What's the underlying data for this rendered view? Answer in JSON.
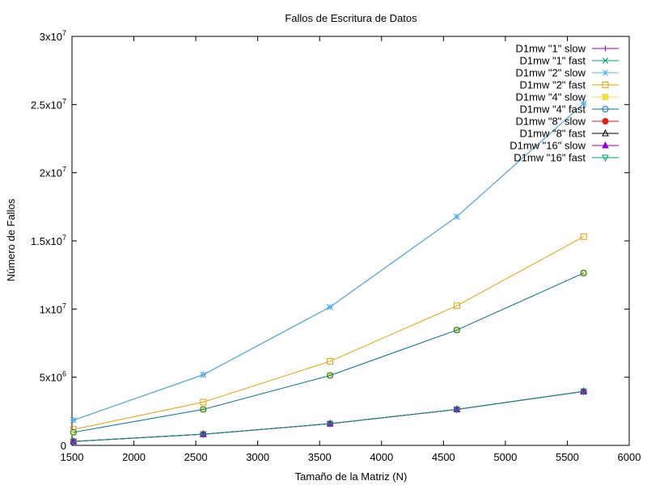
{
  "chart_data": {
    "type": "line",
    "title": "Fallos de Escritura de Datos",
    "xlabel": "Tamaño de la Matriz (N)",
    "ylabel": "Número de Fallos",
    "xlim": [
      1500,
      6000
    ],
    "ylim": [
      0,
      30000000
    ],
    "x_ticks": [
      {
        "value": 1500,
        "label": "1500"
      },
      {
        "value": 2000,
        "label": "2000"
      },
      {
        "value": 2500,
        "label": "2500"
      },
      {
        "value": 3000,
        "label": "3000"
      },
      {
        "value": 3500,
        "label": "3500"
      },
      {
        "value": 4000,
        "label": "4000"
      },
      {
        "value": 4500,
        "label": "4500"
      },
      {
        "value": 5000,
        "label": "5000"
      },
      {
        "value": 5500,
        "label": "5500"
      },
      {
        "value": 6000,
        "label": "6000"
      }
    ],
    "y_ticks": [
      {
        "value": 0,
        "label": "0",
        "exp": ""
      },
      {
        "value": 5000000,
        "label": "5x10",
        "exp": "6"
      },
      {
        "value": 10000000,
        "label": "1x10",
        "exp": "7"
      },
      {
        "value": 15000000,
        "label": "1.5x10",
        "exp": "7"
      },
      {
        "value": 20000000,
        "label": "2x10",
        "exp": "7"
      },
      {
        "value": 25000000,
        "label": "2.5x10",
        "exp": "7"
      },
      {
        "value": 30000000,
        "label": "3x10",
        "exp": "7"
      }
    ],
    "grid": false,
    "legend_position": "top-right",
    "x": [
      1512,
      2560,
      3584,
      4608,
      5632
    ],
    "series": [
      {
        "name": "D1mw \"1\" slow",
        "color": "#9400d3",
        "marker": "plus",
        "values": [
          1850000,
          5180000,
          10150000,
          16780000,
          25070000
        ]
      },
      {
        "name": "D1mw \"1\" fast",
        "color": "#009e73",
        "marker": "cross",
        "values": [
          1850000,
          5180000,
          10150000,
          16780000,
          25070000
        ]
      },
      {
        "name": "D1mw \"2\" slow",
        "color": "#56b4e9",
        "marker": "star",
        "values": [
          1850000,
          5180000,
          10150000,
          16780000,
          25070000
        ]
      },
      {
        "name": "D1mw \"2\" fast",
        "color": "#e69f00",
        "marker": "open-square",
        "values": [
          1170000,
          3170000,
          6170000,
          10240000,
          15310000
        ]
      },
      {
        "name": "D1mw \"4\" slow",
        "color": "#f0e442",
        "marker": "filled-square",
        "values": [
          960000,
          2640000,
          5130000,
          8460000,
          12640000
        ]
      },
      {
        "name": "D1mw \"4\" fast",
        "color": "#0072b2",
        "marker": "open-circle",
        "values": [
          960000,
          2640000,
          5130000,
          8460000,
          12640000
        ]
      },
      {
        "name": "D1mw \"8\" slow",
        "color": "#e51e10",
        "marker": "filled-circle",
        "values": [
          290000,
          820000,
          1590000,
          2640000,
          3960000
        ]
      },
      {
        "name": "D1mw \"8\" fast",
        "color": "#000000",
        "marker": "open-triangle",
        "values": [
          290000,
          820000,
          1590000,
          2640000,
          3960000
        ]
      },
      {
        "name": "D1mw \"16\" slow",
        "color": "#9400d3",
        "marker": "filled-triangle",
        "values": [
          290000,
          820000,
          1590000,
          2640000,
          3960000
        ]
      },
      {
        "name": "D1mw \"16\" fast",
        "color": "#009e73",
        "marker": "open-inverted-triangle",
        "values": [
          290000,
          820000,
          1590000,
          2640000,
          3960000
        ]
      }
    ]
  }
}
